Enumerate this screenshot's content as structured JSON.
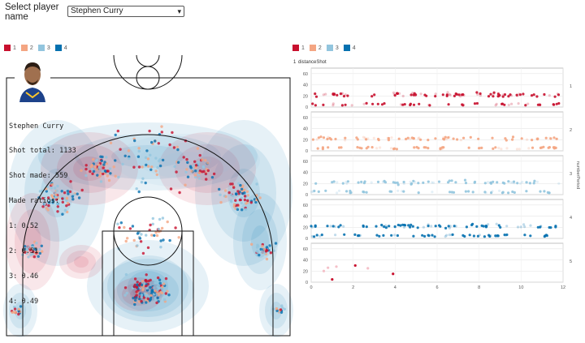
{
  "header": {
    "select_label": "Select player\nname",
    "selected_player": "Stephen Curry"
  },
  "legend_items": [
    "1",
    "2",
    "3",
    "4"
  ],
  "colors": {
    "q1": "#c8102e",
    "q2": "#f4a582",
    "q3": "#92c5de",
    "q4": "#0571b0",
    "court_line": "#111111"
  },
  "player_card": {
    "name": "Stephen Curry",
    "shot_total": "Shot total: 1133",
    "shot_made": "Shot made: 559",
    "ratios_title": "Made ratios:",
    "ratios": [
      "1: 0.52",
      "2: 0.51",
      "3: 0.46",
      "4: 0.49"
    ],
    "icon": "player-headshot"
  },
  "chart_data": [
    {
      "type": "scatter",
      "title": "",
      "description_of_axes": "court",
      "series": [
        {
          "name": "1"
        },
        {
          "name": "2"
        },
        {
          "name": "3"
        },
        {
          "name": "4"
        }
      ]
    },
    {
      "type": "scatter",
      "top_labels": [
        "1",
        "distanceShot"
      ],
      "y_title": "numberPeriod",
      "xlim": [
        0,
        12
      ],
      "x_ticks": [
        "0",
        "2",
        "4",
        "6",
        "8",
        "10",
        "12"
      ],
      "ylim": [
        0,
        70
      ],
      "y_ticks": [
        "0",
        "20",
        "40",
        "60"
      ],
      "panels": [
        {
          "period": "1",
          "point_count": 130
        },
        {
          "period": "2",
          "point_count": 120
        },
        {
          "period": "3",
          "point_count": 110
        },
        {
          "period": "4",
          "point_count": 130
        },
        {
          "period": "5",
          "points": [
            [
              0.6,
              20
            ],
            [
              0.8,
              26
            ],
            [
              1.0,
              5
            ],
            [
              1.2,
              28
            ],
            [
              2.1,
              30
            ],
            [
              2.7,
              25
            ],
            [
              3.9,
              15
            ]
          ]
        }
      ]
    }
  ]
}
